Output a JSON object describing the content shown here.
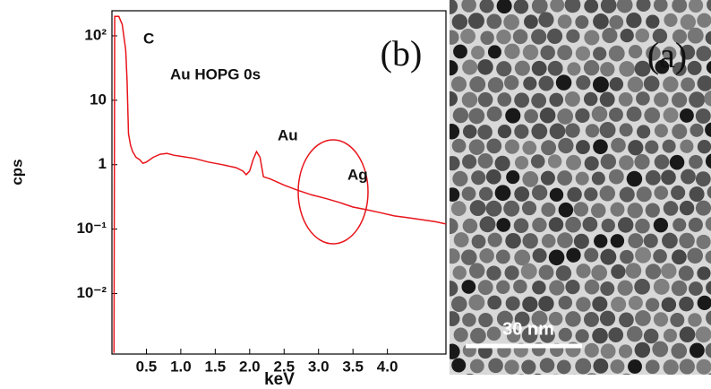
{
  "chart_data": {
    "type": "line",
    "yscale": "log",
    "xlabel": "keV",
    "ylabel": "cps",
    "annotations": [
      "C",
      "Au HOPG 0s",
      "Au",
      "Ag",
      "(b)"
    ],
    "xlim": [
      0,
      4.85
    ],
    "xticks": [
      0.5,
      {
        "value": 1,
        "label": "1.0"
      },
      1.5,
      {
        "value": 2,
        "label": "2.0"
      },
      2.5,
      {
        "value": 3,
        "label": "3.0"
      },
      3.5,
      {
        "value": 4,
        "label": "4.0"
      }
    ],
    "ylim": [
      0.00115,
      245
    ],
    "yticks": [
      {
        "value": 100,
        "label": "10²"
      },
      10,
      1,
      {
        "value": 0.1,
        "label": "10⁻¹"
      },
      {
        "value": 0.01,
        "label": "10⁻²"
      }
    ],
    "x": [
      0.03,
      0.04,
      0.1,
      0.15,
      0.2,
      0.22,
      0.24,
      0.27,
      0.3,
      0.35,
      0.4,
      0.45,
      0.5,
      0.6,
      0.7,
      0.8,
      0.9,
      1.0,
      1.2,
      1.4,
      1.6,
      1.8,
      1.9,
      1.95,
      2.0,
      2.05,
      2.1,
      2.15,
      2.2,
      2.3,
      2.5,
      2.7,
      2.9,
      3.1,
      3.3,
      3.5,
      3.7,
      3.9,
      4.1,
      4.3,
      4.5,
      4.7,
      4.85
    ],
    "series": [
      {
        "color": "#e8141a",
        "values": [
          0.0012,
          200,
          200,
          150,
          60,
          20,
          3,
          2.0,
          1.6,
          1.3,
          1.2,
          1.05,
          1.1,
          1.3,
          1.45,
          1.5,
          1.4,
          1.35,
          1.25,
          1.1,
          1.0,
          0.9,
          0.8,
          0.7,
          0.8,
          1.2,
          1.6,
          1.3,
          0.65,
          0.6,
          0.48,
          0.4,
          0.34,
          0.3,
          0.26,
          0.22,
          0.2,
          0.18,
          0.16,
          0.15,
          0.14,
          0.13,
          0.12
        ]
      }
    ]
  },
  "image_panel": {
    "label": "(a)",
    "scale_bar": "30 nm"
  }
}
